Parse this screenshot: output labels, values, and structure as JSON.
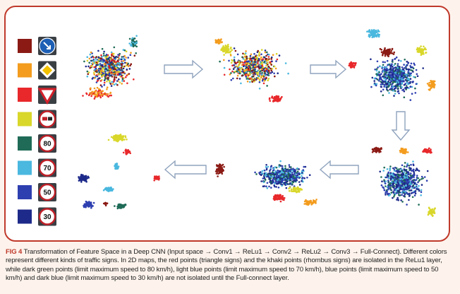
{
  "figure": {
    "label": "FIG 4",
    "caption": " Transformation of Feature Space in a Deep CNN (Input space → Conv1 → ReLu1 → Conv2 → ReLu2 → Conv3 → Full-Connect). Different colors represent different kinds of traffic signs. In 2D maps, the red points (triangle signs) and the khaki points (rhombus signs) are isolated in the ReLu1 layer, while dark green points (limit maximum speed to 80 km/h), light blue points (limit maximum speed to 70 km/h), blue points (limit maximum speed to 50 km/h) and dark blue (limit maximum speed to 30 km/h) are not isolated until the Full-connect layer."
  },
  "legend": [
    {
      "color": "#8b1a14",
      "sign": "keep-right-sign"
    },
    {
      "color": "#f39c1e",
      "sign": "priority-road-rhombus-sign"
    },
    {
      "color": "#e8282b",
      "sign": "yield-triangle-sign"
    },
    {
      "color": "#d9d72a",
      "sign": "no-overtaking-trucks-sign"
    },
    {
      "color": "#1f6b57",
      "sign": "speed-limit-80-sign",
      "text": "80"
    },
    {
      "color": "#4ab8df",
      "sign": "speed-limit-70-sign",
      "text": "70"
    },
    {
      "color": "#2e3fb0",
      "sign": "speed-limit-50-sign",
      "text": "50"
    },
    {
      "color": "#1d2a8a",
      "sign": "speed-limit-30-sign",
      "text": "30"
    }
  ],
  "colors": {
    "frame": "#c0392b",
    "arrow_stroke": "#8fa3bd",
    "arrow_fill": "#ffffff"
  }
}
